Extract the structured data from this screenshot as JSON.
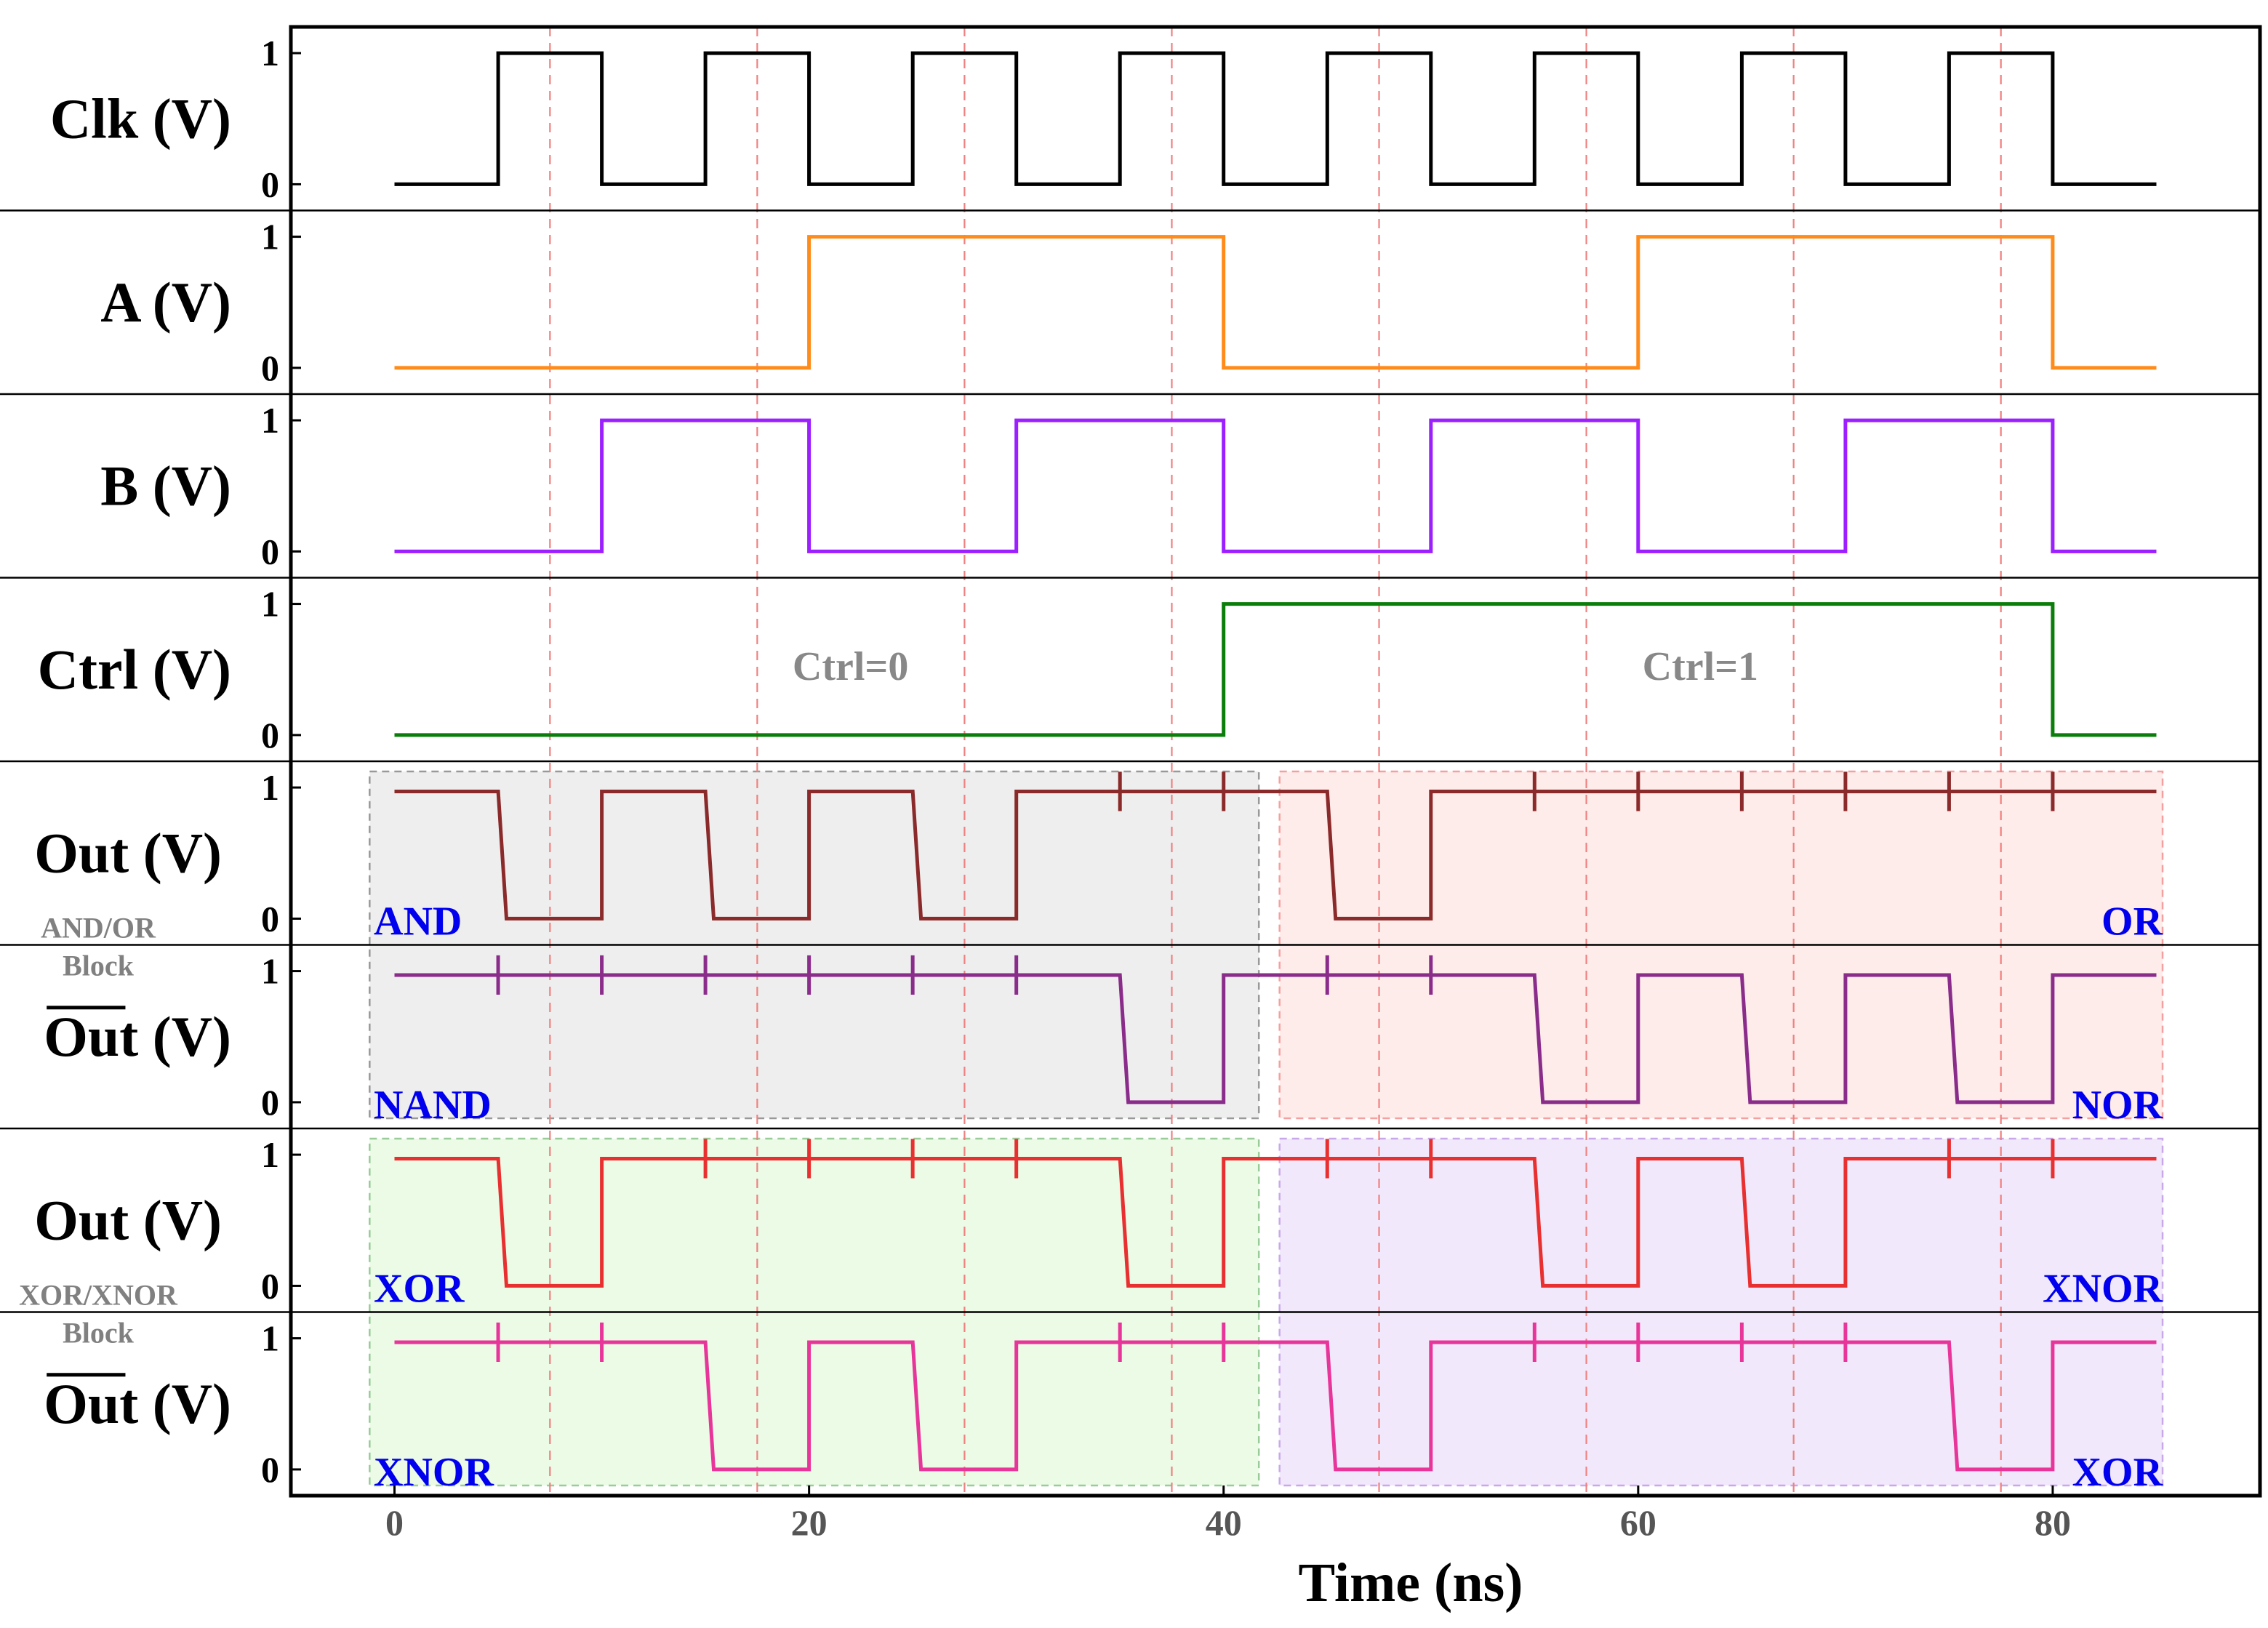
{
  "chart_data": {
    "type": "line",
    "xlabel": "Time (ns)",
    "xlim": [
      -5,
      90
    ],
    "xticks": [
      0,
      20,
      40,
      60,
      80
    ],
    "ylim": [
      -0.2,
      1.2
    ],
    "guide_lines_ns": [
      7.5,
      17.5,
      27.5,
      37.5,
      47.5,
      57.5,
      67.5,
      77.5
    ],
    "control_states": [
      {
        "text": "Ctrl=0",
        "x": 22
      },
      {
        "text": "Ctrl=1",
        "x": 63
      }
    ],
    "panels": [
      {
        "id": "clk",
        "label": "Clk (V)",
        "overline": false,
        "color": "#000000",
        "yticks": [
          "1",
          "0"
        ],
        "points": [
          [
            0,
            0
          ],
          [
            5,
            0
          ],
          [
            5,
            1
          ],
          [
            10,
            1
          ],
          [
            10,
            0
          ],
          [
            15,
            0
          ],
          [
            15,
            1
          ],
          [
            20,
            1
          ],
          [
            20,
            0
          ],
          [
            25,
            0
          ],
          [
            25,
            1
          ],
          [
            30,
            1
          ],
          [
            30,
            0
          ],
          [
            35,
            0
          ],
          [
            35,
            1
          ],
          [
            40,
            1
          ],
          [
            40,
            0
          ],
          [
            45,
            0
          ],
          [
            45,
            1
          ],
          [
            50,
            1
          ],
          [
            50,
            0
          ],
          [
            55,
            0
          ],
          [
            55,
            1
          ],
          [
            60,
            1
          ],
          [
            60,
            0
          ],
          [
            65,
            0
          ],
          [
            65,
            1
          ],
          [
            70,
            1
          ],
          [
            70,
            0
          ],
          [
            75,
            0
          ],
          [
            75,
            1
          ],
          [
            80,
            1
          ],
          [
            80,
            0
          ],
          [
            85,
            0
          ]
        ]
      },
      {
        "id": "a",
        "label": "A (V)",
        "overline": false,
        "color": "#ff8c1a",
        "yticks": [
          "1",
          "0"
        ],
        "points": [
          [
            0,
            0
          ],
          [
            20,
            0
          ],
          [
            20,
            1
          ],
          [
            40,
            1
          ],
          [
            40,
            0
          ],
          [
            60,
            0
          ],
          [
            60,
            1
          ],
          [
            80,
            1
          ],
          [
            80,
            0
          ],
          [
            85,
            0
          ]
        ]
      },
      {
        "id": "b",
        "label": "B (V)",
        "overline": false,
        "color": "#9b1fff",
        "yticks": [
          "1",
          "0"
        ],
        "points": [
          [
            0,
            0
          ],
          [
            10,
            0
          ],
          [
            10,
            1
          ],
          [
            20,
            1
          ],
          [
            20,
            0
          ],
          [
            30,
            0
          ],
          [
            30,
            1
          ],
          [
            40,
            1
          ],
          [
            40,
            0
          ],
          [
            50,
            0
          ],
          [
            50,
            1
          ],
          [
            60,
            1
          ],
          [
            60,
            0
          ],
          [
            70,
            0
          ],
          [
            70,
            1
          ],
          [
            80,
            1
          ],
          [
            80,
            0
          ],
          [
            85,
            0
          ]
        ]
      },
      {
        "id": "ctrl",
        "label": "Ctrl (V)",
        "overline": false,
        "color": "#0a7d0a",
        "yticks": [
          "1",
          "0"
        ],
        "points": [
          [
            0,
            0
          ],
          [
            40,
            0
          ],
          [
            40,
            1
          ],
          [
            80,
            1
          ],
          [
            80,
            0
          ],
          [
            85,
            0
          ]
        ]
      },
      {
        "id": "out1",
        "label": "Out (V)",
        "overline": false,
        "color": "#8b2a2a",
        "yticks": [
          "1",
          "0"
        ],
        "points": [
          [
            0,
            0.97
          ],
          [
            5,
            0.97
          ],
          [
            5.4,
            0
          ],
          [
            10,
            0
          ],
          [
            10,
            0.97
          ],
          [
            15,
            0.97
          ],
          [
            15.4,
            0
          ],
          [
            20,
            0
          ],
          [
            20,
            0.97
          ],
          [
            25,
            0.97
          ],
          [
            25.4,
            0
          ],
          [
            30,
            0
          ],
          [
            30,
            0.97
          ],
          [
            45,
            0.97
          ],
          [
            45.4,
            0
          ],
          [
            50,
            0
          ],
          [
            50,
            0.97
          ],
          [
            85,
            0.97
          ]
        ],
        "spikes": [
          35,
          40,
          55,
          60,
          65,
          70,
          75,
          80
        ],
        "gates": [
          "AND",
          "OR"
        ]
      },
      {
        "id": "outbar1",
        "label": "Out (V)",
        "overline": true,
        "color": "#8a2c8a",
        "yticks": [
          "1",
          "0"
        ],
        "points": [
          [
            0,
            0.97
          ],
          [
            35,
            0.97
          ],
          [
            35.4,
            0
          ],
          [
            40,
            0
          ],
          [
            40,
            0.97
          ],
          [
            55,
            0.97
          ],
          [
            55.4,
            0
          ],
          [
            60,
            0
          ],
          [
            60,
            0.97
          ],
          [
            65,
            0.97
          ],
          [
            65.4,
            0
          ],
          [
            70,
            0
          ],
          [
            70,
            0.97
          ],
          [
            75,
            0.97
          ],
          [
            75.4,
            0
          ],
          [
            80,
            0
          ],
          [
            80,
            0.97
          ],
          [
            85,
            0.97
          ]
        ],
        "spikes": [
          5,
          10,
          15,
          20,
          25,
          30,
          45,
          50
        ],
        "gates": [
          "NAND",
          "NOR"
        ]
      },
      {
        "id": "out2",
        "label": "Out (V)",
        "overline": false,
        "color": "#e83030",
        "yticks": [
          "1",
          "0"
        ],
        "points": [
          [
            0,
            0.97
          ],
          [
            5,
            0.97
          ],
          [
            5.4,
            0
          ],
          [
            10,
            0
          ],
          [
            10,
            0.97
          ],
          [
            35,
            0.97
          ],
          [
            35.4,
            0
          ],
          [
            40,
            0
          ],
          [
            40,
            0.97
          ],
          [
            55,
            0.97
          ],
          [
            55.4,
            0
          ],
          [
            60,
            0
          ],
          [
            60,
            0.97
          ],
          [
            65,
            0.97
          ],
          [
            65.4,
            0
          ],
          [
            70,
            0
          ],
          [
            70,
            0.97
          ],
          [
            85,
            0.97
          ]
        ],
        "spikes": [
          15,
          20,
          25,
          30,
          45,
          50,
          75,
          80
        ],
        "gates": [
          "XOR",
          "XNOR"
        ]
      },
      {
        "id": "outbar2",
        "label": "Out (V)",
        "overline": true,
        "color": "#e8359a",
        "yticks": [
          "1",
          "0"
        ],
        "points": [
          [
            0,
            0.97
          ],
          [
            15,
            0.97
          ],
          [
            15.4,
            0
          ],
          [
            20,
            0
          ],
          [
            20,
            0.97
          ],
          [
            25,
            0.97
          ],
          [
            25.4,
            0
          ],
          [
            30,
            0
          ],
          [
            30,
            0.97
          ],
          [
            45,
            0.97
          ],
          [
            45.4,
            0
          ],
          [
            50,
            0
          ],
          [
            50,
            0.97
          ],
          [
            75,
            0.97
          ],
          [
            75.4,
            0
          ],
          [
            80,
            0
          ],
          [
            80,
            0.97
          ],
          [
            85,
            0.97
          ]
        ],
        "spikes": [
          5,
          10,
          35,
          40,
          55,
          60,
          65,
          70
        ],
        "gates": [
          "XNOR",
          "XOR"
        ]
      }
    ],
    "blocks": [
      {
        "name": "AND/OR Block",
        "line1": "AND/OR",
        "line2": "Block",
        "panels": [
          4,
          5
        ],
        "left_fill": "#eeeeee",
        "left_edge": "#999999",
        "right_fill": "#fdecea",
        "right_edge": "#f4a0a0"
      },
      {
        "name": "XOR/XNOR Block",
        "line1": "XOR/XNOR",
        "line2": "Block",
        "panels": [
          6,
          7
        ],
        "left_fill": "#ebfbe6",
        "left_edge": "#99cc99",
        "right_fill": "#f1e9fb",
        "right_edge": "#c8a8e8"
      }
    ]
  }
}
